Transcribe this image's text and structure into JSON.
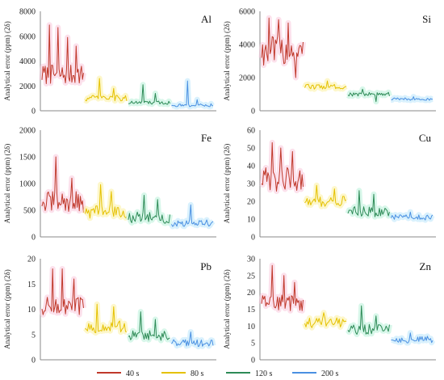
{
  "legend": [
    {
      "label": "40 s",
      "color": "#c0392b"
    },
    {
      "label": "80 s",
      "color": "#e5c100"
    },
    {
      "label": "120 s",
      "color": "#2e8b57"
    },
    {
      "label": "200 s",
      "color": "#4a90e2"
    }
  ],
  "chart_data": [
    {
      "type": "line",
      "title": "Al",
      "ylabel": "Analytical error (ppm) (2δ)",
      "ylim": [
        0,
        8000
      ],
      "yticks": [
        0,
        2000,
        4000,
        6000,
        8000
      ],
      "series": [
        {
          "name": "40 s",
          "mean": 2900,
          "spread": 800,
          "spikes": [
            6900,
            6700,
            5900,
            5200
          ]
        },
        {
          "name": "80 s",
          "mean": 1000,
          "spread": 250,
          "spikes": [
            2600,
            1800
          ]
        },
        {
          "name": "120 s",
          "mean": 650,
          "spread": 150,
          "spikes": [
            2100,
            1400
          ]
        },
        {
          "name": "200 s",
          "mean": 450,
          "spread": 120,
          "spikes": [
            2400,
            900
          ]
        }
      ]
    },
    {
      "type": "line",
      "title": "Si",
      "ylabel": "Analytical error (ppm) (2δ)",
      "ylim": [
        0,
        6000
      ],
      "yticks": [
        0,
        2000,
        4000,
        6000
      ],
      "series": [
        {
          "name": "40 s",
          "mean": 3600,
          "spread": 900,
          "spikes": [
            5600,
            5500,
            5300,
            2000
          ]
        },
        {
          "name": "80 s",
          "mean": 1450,
          "spread": 150,
          "spikes": [
            1800
          ]
        },
        {
          "name": "120 s",
          "mean": 1000,
          "spread": 120,
          "spikes": [
            1300,
            550
          ]
        },
        {
          "name": "200 s",
          "mean": 700,
          "spread": 80,
          "spikes": [
            850
          ]
        }
      ]
    },
    {
      "type": "line",
      "title": "Fe",
      "ylabel": "Analytical error (ppm) (2δ)",
      "ylim": [
        0,
        2000
      ],
      "yticks": [
        0,
        500,
        1000,
        1500,
        2000
      ],
      "series": [
        {
          "name": "40 s",
          "mean": 650,
          "spread": 200,
          "spikes": [
            1500,
            1100
          ]
        },
        {
          "name": "80 s",
          "mean": 480,
          "spread": 130,
          "spikes": [
            980,
            850
          ]
        },
        {
          "name": "120 s",
          "mean": 360,
          "spread": 110,
          "spikes": [
            780,
            700
          ]
        },
        {
          "name": "200 s",
          "mean": 260,
          "spread": 70,
          "spikes": [
            600
          ]
        }
      ]
    },
    {
      "type": "line",
      "title": "Cu",
      "ylabel": "Analytical error (ppm) (2δ)",
      "ylim": [
        0,
        60
      ],
      "yticks": [
        0,
        10,
        20,
        30,
        40,
        50,
        60
      ],
      "series": [
        {
          "name": "40 s",
          "mean": 32,
          "spread": 7,
          "spikes": [
            53,
            50,
            48
          ]
        },
        {
          "name": "80 s",
          "mean": 20,
          "spread": 3,
          "spikes": [
            29,
            27
          ]
        },
        {
          "name": "120 s",
          "mean": 14,
          "spread": 3,
          "spikes": [
            26,
            24
          ]
        },
        {
          "name": "200 s",
          "mean": 11,
          "spread": 1.5,
          "spikes": [
            14
          ]
        }
      ]
    },
    {
      "type": "line",
      "title": "Pb",
      "ylabel": "Analytical error (ppm) (2δ)",
      "ylim": [
        0,
        20
      ],
      "yticks": [
        0,
        5,
        10,
        15,
        20
      ],
      "series": [
        {
          "name": "40 s",
          "mean": 10.5,
          "spread": 2.0,
          "spikes": [
            18,
            18,
            16
          ]
        },
        {
          "name": "80 s",
          "mean": 6.5,
          "spread": 1.2,
          "spikes": [
            11,
            10.5
          ]
        },
        {
          "name": "120 s",
          "mean": 4.8,
          "spread": 1.0,
          "spikes": [
            9.5,
            8
          ]
        },
        {
          "name": "200 s",
          "mean": 3.3,
          "spread": 0.7,
          "spikes": [
            5.5
          ]
        }
      ]
    },
    {
      "type": "line",
      "title": "Zn",
      "ylabel": "Analytical error (ppm) (2δ)",
      "ylim": [
        0,
        30
      ],
      "yticks": [
        0,
        5,
        10,
        15,
        20,
        25,
        30
      ],
      "series": [
        {
          "name": "40 s",
          "mean": 17,
          "spread": 2.5,
          "spikes": [
            28,
            25,
            23
          ]
        },
        {
          "name": "80 s",
          "mean": 11,
          "spread": 1.5,
          "spikes": [
            14
          ]
        },
        {
          "name": "120 s",
          "mean": 9,
          "spread": 1.5,
          "spikes": [
            16,
            13
          ]
        },
        {
          "name": "200 s",
          "mean": 6,
          "spread": 1.0,
          "spikes": [
            8
          ]
        }
      ]
    }
  ]
}
